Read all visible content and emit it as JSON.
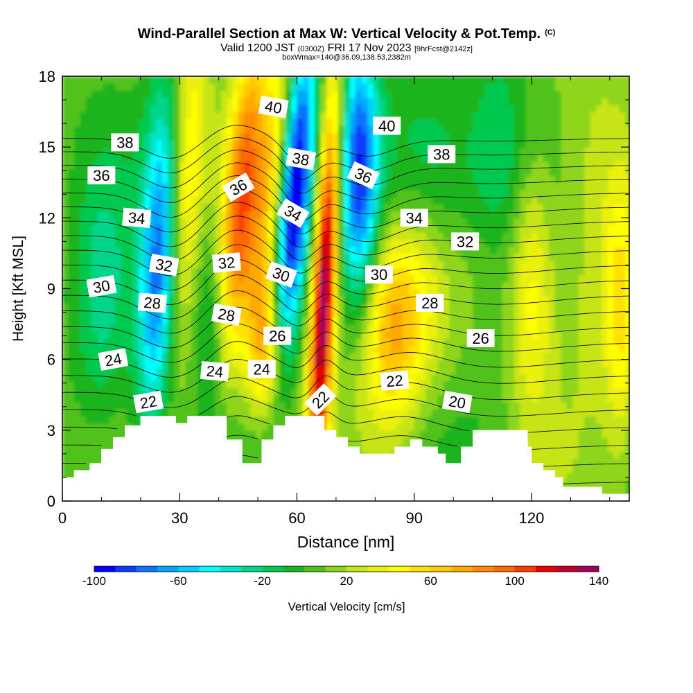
{
  "title": {
    "main": "Wind-Parallel Section at Max W: Vertical Velocity & Pot.Temp.",
    "copyright": "(C)",
    "valid_prefix": "Valid 1200 JST",
    "valid_utc": "(0300Z)",
    "valid_date": "FRI 17 Nov 2023",
    "forecast": "[9hrFcst@2142z]",
    "box_info": "boxWmax=140@36.09,138.53,2382m"
  },
  "chart_data": {
    "type": "heatmap",
    "xlabel": "Distance [nm]",
    "ylabel": "Height [Kft MSL]",
    "xlim": [
      0,
      145
    ],
    "ylim": [
      0,
      18
    ],
    "x_ticks": [
      0,
      30,
      60,
      90,
      120
    ],
    "y_ticks": [
      0,
      3,
      6,
      9,
      12,
      15,
      18
    ],
    "colorbar": {
      "label": "Vertical Velocity [cm/s]",
      "ticks": [
        -100,
        -60,
        -20,
        20,
        60,
        100,
        140
      ],
      "range": [
        -100,
        140
      ],
      "step": 10,
      "colors": [
        "#0000ff",
        "#0b3cff",
        "#0d73ff",
        "#00a6ff",
        "#00ccff",
        "#00ffff",
        "#00e5c8",
        "#00d68a",
        "#00c94f",
        "#1ab41f",
        "#51c21c",
        "#8ed51a",
        "#c7e513",
        "#ebf00a",
        "#ffff00",
        "#ffe100",
        "#ffc800",
        "#ffa800",
        "#ff8c00",
        "#ff6a00",
        "#ff3c00",
        "#e60000",
        "#c00028",
        "#a00060",
        "#8000a0"
      ]
    },
    "vertical_velocity_features": [
      {
        "x": 25,
        "y": 10,
        "w": -80
      },
      {
        "x": 31,
        "y": 13,
        "w": 50
      },
      {
        "x": 46,
        "y": 14,
        "w": 80
      },
      {
        "x": 53,
        "y": 13,
        "w": 60
      },
      {
        "x": 60,
        "y": 13,
        "w": -100
      },
      {
        "x": 67,
        "y": 8,
        "w": 140
      },
      {
        "x": 76,
        "y": 13,
        "w": -80
      },
      {
        "x": 84,
        "y": 7,
        "w": 60
      },
      {
        "x": 120,
        "y": 9,
        "w": 50
      },
      {
        "x": 140,
        "y": 13,
        "w": 30
      },
      {
        "x": 10,
        "y": 9,
        "w": 0
      }
    ],
    "terrain": [
      [
        0,
        1.0
      ],
      [
        3,
        1.3
      ],
      [
        7,
        1.6
      ],
      [
        10,
        2.2
      ],
      [
        13,
        2.7
      ],
      [
        16,
        3.2
      ],
      [
        20,
        3.6
      ],
      [
        28,
        3.6
      ],
      [
        29,
        3.3
      ],
      [
        32,
        3.6
      ],
      [
        39,
        3.6
      ],
      [
        42,
        2.6
      ],
      [
        45,
        2.6
      ],
      [
        46,
        1.6
      ],
      [
        50,
        1.6
      ],
      [
        51,
        2.6
      ],
      [
        54,
        3.2
      ],
      [
        55,
        3.2
      ],
      [
        57,
        3.6
      ],
      [
        65,
        3.6
      ],
      [
        67,
        3.0
      ],
      [
        70,
        2.7
      ],
      [
        73,
        2.3
      ],
      [
        75,
        2.3
      ],
      [
        76,
        2.0
      ],
      [
        83,
        2.0
      ],
      [
        85,
        2.3
      ],
      [
        89,
        2.6
      ],
      [
        92,
        2.3
      ],
      [
        96,
        2.0
      ],
      [
        98,
        1.6
      ],
      [
        101,
        1.6
      ],
      [
        102,
        2.3
      ],
      [
        104,
        2.3
      ],
      [
        105,
        3.0
      ],
      [
        116,
        3.0
      ],
      [
        119,
        2.3
      ],
      [
        120,
        1.6
      ],
      [
        123,
        1.3
      ],
      [
        126,
        1.0
      ],
      [
        128,
        0.6
      ],
      [
        137,
        0.6
      ],
      [
        138,
        0.3
      ],
      [
        145,
        0.3
      ]
    ],
    "theta_isentropes": {
      "min": 19,
      "max": 42,
      "step": 1,
      "labels": [
        {
          "value": 40,
          "x": 54,
          "y": 16.7,
          "rot": 10
        },
        {
          "value": 40,
          "x": 83,
          "y": 15.9,
          "rot": 0
        },
        {
          "value": 38,
          "x": 16,
          "y": 15.2,
          "rot": 0
        },
        {
          "value": 38,
          "x": 61,
          "y": 14.5,
          "rot": 10
        },
        {
          "value": 38,
          "x": 97,
          "y": 14.7,
          "rot": 0
        },
        {
          "value": 36,
          "x": 10,
          "y": 13.8,
          "rot": 0
        },
        {
          "value": 36,
          "x": 45,
          "y": 13.3,
          "rot": -30
        },
        {
          "value": 36,
          "x": 77,
          "y": 13.8,
          "rot": 25
        },
        {
          "value": 34,
          "x": 19,
          "y": 12.0,
          "rot": 5
        },
        {
          "value": 34,
          "x": 59,
          "y": 12.2,
          "rot": 30
        },
        {
          "value": 34,
          "x": 90,
          "y": 12.0,
          "rot": 0
        },
        {
          "value": 32,
          "x": 26,
          "y": 10.0,
          "rot": 10
        },
        {
          "value": 32,
          "x": 42,
          "y": 10.1,
          "rot": -5
        },
        {
          "value": 32,
          "x": 103,
          "y": 11.0,
          "rot": 0
        },
        {
          "value": 30,
          "x": 10,
          "y": 9.1,
          "rot": -10
        },
        {
          "value": 30,
          "x": 56,
          "y": 9.6,
          "rot": 20
        },
        {
          "value": 30,
          "x": 81,
          "y": 9.6,
          "rot": 0
        },
        {
          "value": 28,
          "x": 23,
          "y": 8.4,
          "rot": 5
        },
        {
          "value": 28,
          "x": 42,
          "y": 7.9,
          "rot": 10
        },
        {
          "value": 28,
          "x": 94,
          "y": 8.4,
          "rot": 0
        },
        {
          "value": 26,
          "x": 55,
          "y": 7.0,
          "rot": 0
        },
        {
          "value": 26,
          "x": 107,
          "y": 6.9,
          "rot": 0
        },
        {
          "value": 24,
          "x": 13,
          "y": 6.0,
          "rot": -10
        },
        {
          "value": 24,
          "x": 39,
          "y": 5.5,
          "rot": 5
        },
        {
          "value": 24,
          "x": 51,
          "y": 5.6,
          "rot": 0
        },
        {
          "value": 22,
          "x": 22,
          "y": 4.2,
          "rot": -10
        },
        {
          "value": 22,
          "x": 66,
          "y": 4.3,
          "rot": -45
        },
        {
          "value": 22,
          "x": 85,
          "y": 5.1,
          "rot": -5
        },
        {
          "value": 20,
          "x": 101,
          "y": 4.2,
          "rot": 10
        }
      ]
    }
  }
}
